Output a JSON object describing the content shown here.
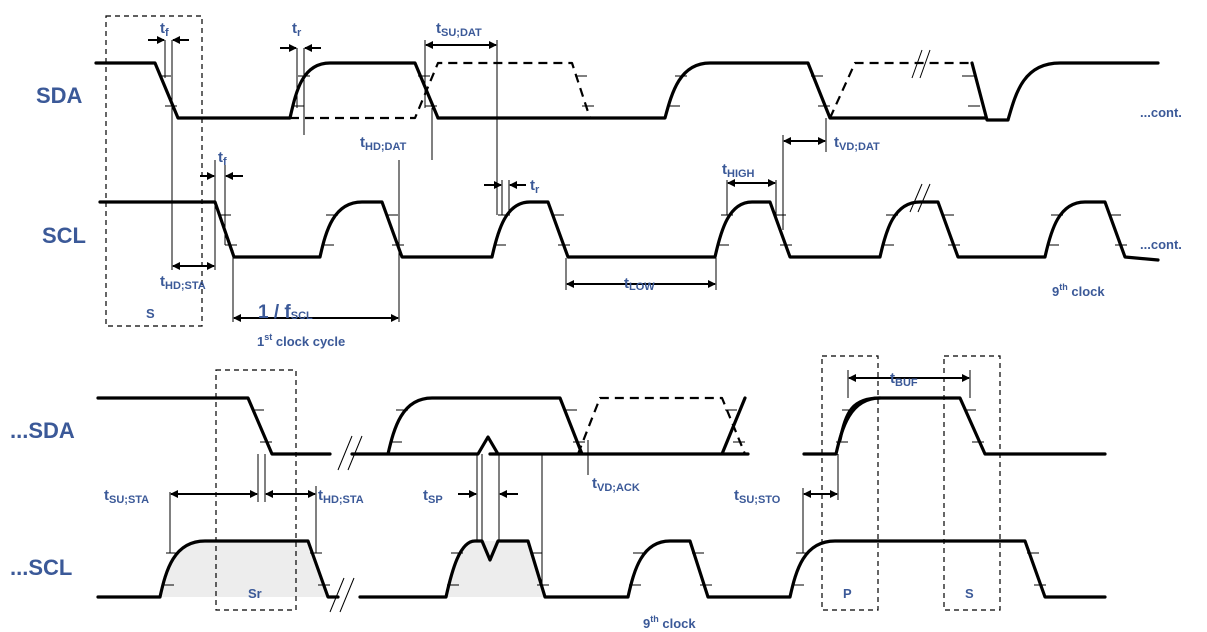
{
  "signals": {
    "sda": "SDA",
    "scl": "SCL",
    "sda_cont": "...SDA",
    "scl_cont": "...SCL",
    "cont": "...cont."
  },
  "timing": {
    "t": "t",
    "f": "f",
    "r": "r",
    "su_dat": "SU;DAT",
    "hd_dat": "HD;DAT",
    "vd_dat": "VD;DAT",
    "high": "HIGH",
    "hd_sta": "HD;STA",
    "low": "LOW",
    "su_sta": "SU;STA",
    "sp": "SP",
    "vd_ack": "VD;ACK",
    "su_sto": "SU;STO",
    "buf": "BUF"
  },
  "conditions": {
    "start": "S",
    "repeated_start": "Sr",
    "stop": "P",
    "start2": "S"
  },
  "clock": {
    "period_main": "1 / f",
    "period_sub": "SCL",
    "first_num": "1",
    "first_sup": "st",
    "first_rest": " clock cycle",
    "ninth_num": "9",
    "ninth_sup": "th",
    "ninth_rest": " clock"
  }
}
